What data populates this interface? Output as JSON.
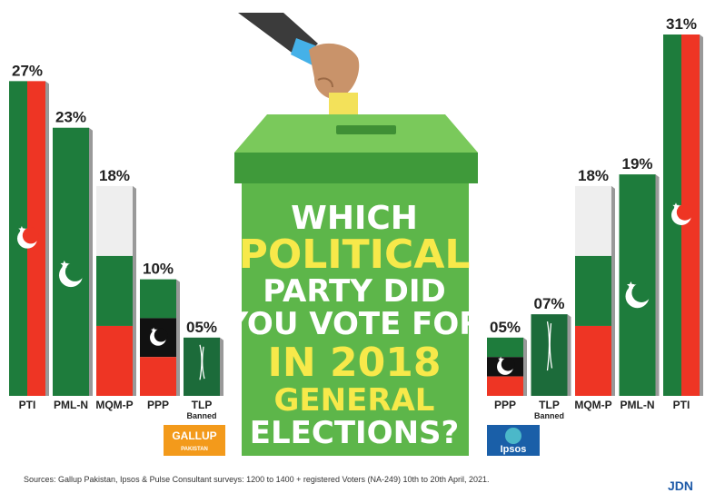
{
  "colors": {
    "green": "#1e7c3c",
    "green_light": "#2f9a48",
    "red": "#ee3524",
    "white_band": "#eeeeee",
    "black": "#111111",
    "box_green": "#5db64a",
    "question_yellow": "#f7e94a"
  },
  "question": {
    "line1": "WHICH",
    "line2": "POLITICAL",
    "line3": "PARTY DID",
    "line4": "YOU VOTE FOR",
    "line5": "IN 2018",
    "line6": "GENERAL",
    "line7": "ELECTIONS?"
  },
  "chart_data": [
    {
      "type": "bar",
      "source_logo": "Gallup Pakistan",
      "categories": [
        "PTI",
        "PML-N",
        "MQM-P",
        "PPP",
        "TLP"
      ],
      "values": [
        27,
        23,
        18,
        10,
        5
      ],
      "labels": [
        "27%",
        "23%",
        "18%",
        "10%",
        "05%"
      ],
      "notes": [
        "",
        "",
        "",
        "",
        "Banned"
      ],
      "bar_icons": [
        "crescent-star-icon",
        "crescent-star-icon",
        "none",
        "crescent-star-icon",
        "arabic-calligraphy-icon"
      ]
    },
    {
      "type": "bar",
      "source_logo": "Ipsos",
      "categories": [
        "PPP",
        "TLP",
        "MQM-P",
        "PML-N",
        "PTI"
      ],
      "values": [
        5,
        7,
        18,
        19,
        31
      ],
      "labels": [
        "05%",
        "07%",
        "18%",
        "19%",
        "31%"
      ],
      "notes": [
        "",
        "Banned",
        "",
        "",
        ""
      ],
      "bar_icons": [
        "crescent-star-icon",
        "arabic-calligraphy-icon",
        "none",
        "crescent-star-icon",
        "crescent-star-icon"
      ]
    }
  ],
  "logos": {
    "gallup": "GALLUP",
    "gallup_sub": "PAKISTAN",
    "ipsos": "Ipsos",
    "jdn": "JDN"
  },
  "footer": {
    "sources": "Sources: Gallup Pakistan, Ipsos & Pulse Consultant surveys: 1200 to 1400 + registered Voters (NA-249) 10th to 20th April, 2021."
  }
}
